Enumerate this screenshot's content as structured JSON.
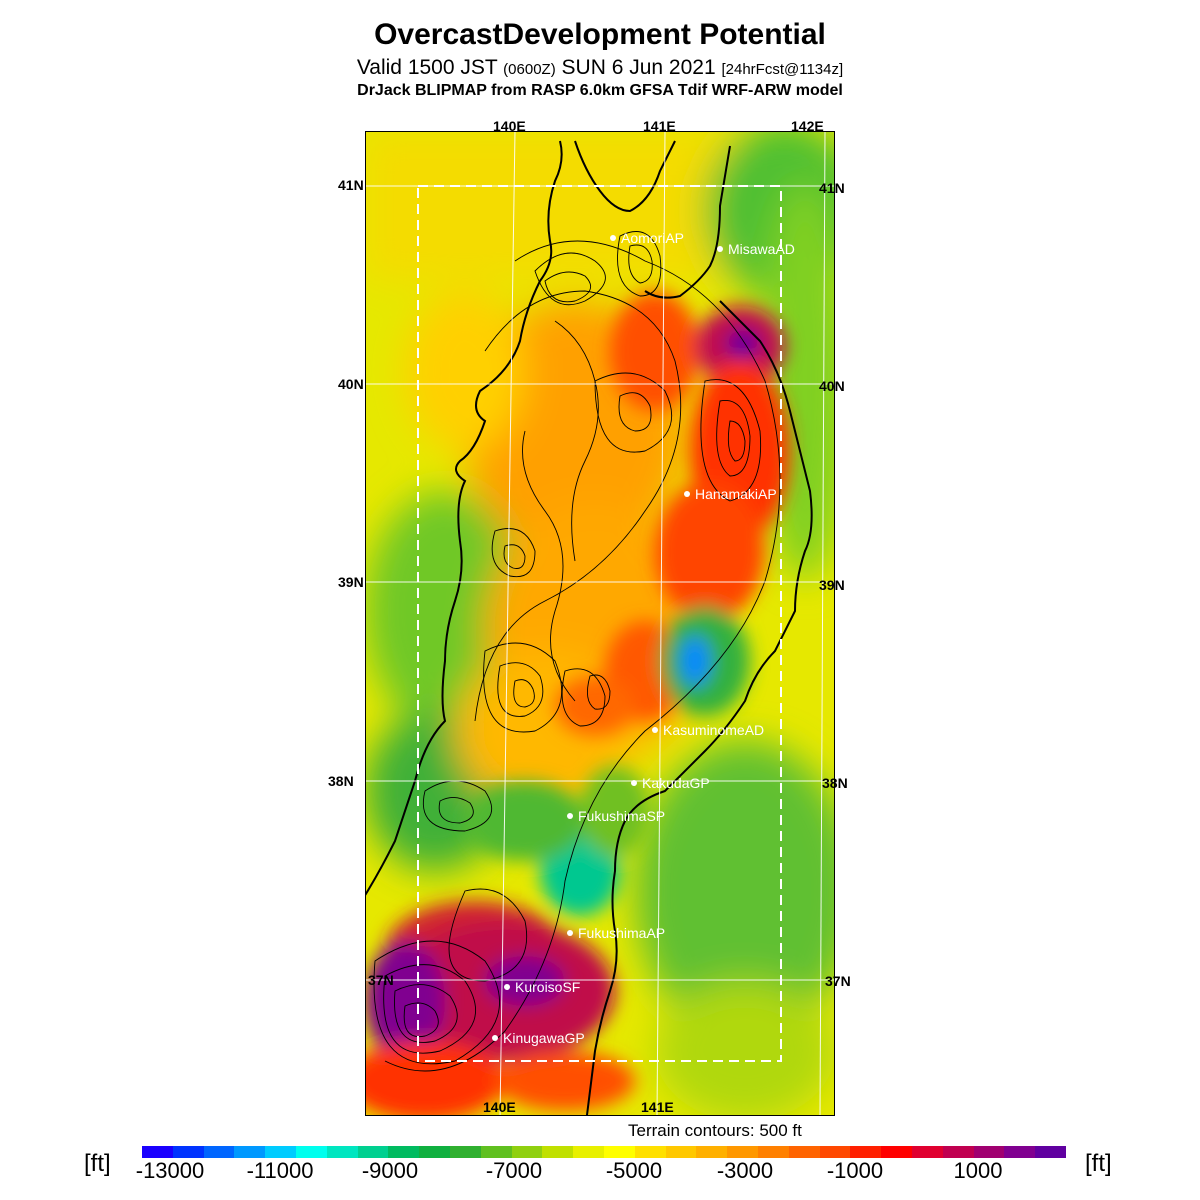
{
  "header": {
    "title": "OvercastDevelopment Potential",
    "valid_pre": "Valid 1500 JST ",
    "valid_utc": "(0600Z)",
    "valid_date": " SUN 6 Jun 2021 ",
    "forecast": "[24hrFcst@1134z]",
    "model": "DrJack BLIPMAP from RASP 6.0km GFSA Tdif WRF-ARW model"
  },
  "map": {
    "lon_labels_top": [
      "140E",
      "141E",
      "142E"
    ],
    "lon_labels_bottom": [
      "140E",
      "141E"
    ],
    "lat_labels_left": [
      "41N",
      "40N",
      "39N",
      "38N",
      "37N"
    ],
    "lat_labels_right": [
      "41N",
      "40N",
      "39N",
      "38N",
      "37N"
    ],
    "stations": [
      {
        "name": "AomoriAP"
      },
      {
        "name": "MisawaAD"
      },
      {
        "name": "HanamakiAP"
      },
      {
        "name": "KasuminomeAD"
      },
      {
        "name": "KakudaGP"
      },
      {
        "name": "FukushimaSP"
      },
      {
        "name": "FukushimaAP"
      },
      {
        "name": "KuroisoSF"
      },
      {
        "name": "KinugawaGP"
      }
    ],
    "terrain_note": "Terrain contours: 500 ft"
  },
  "colorbar": {
    "unit": "[ft]",
    "labels": [
      "-13000",
      "-11000",
      "-9000",
      "-7000",
      "-5000",
      "-3000",
      "-1000",
      "1000"
    ],
    "colors": [
      "#1a00ff",
      "#0033ff",
      "#0066ff",
      "#0099ff",
      "#00ccff",
      "#00ffee",
      "#00e6c0",
      "#00d090",
      "#00bb60",
      "#10b040",
      "#30b030",
      "#60c020",
      "#90d010",
      "#c0e000",
      "#e8f000",
      "#ffff00",
      "#ffe000",
      "#ffc800",
      "#ffb000",
      "#ff9800",
      "#ff8000",
      "#ff6400",
      "#ff4800",
      "#ff2000",
      "#ff0000",
      "#e00030",
      "#c00050",
      "#a00070",
      "#800090",
      "#6000a0"
    ]
  }
}
